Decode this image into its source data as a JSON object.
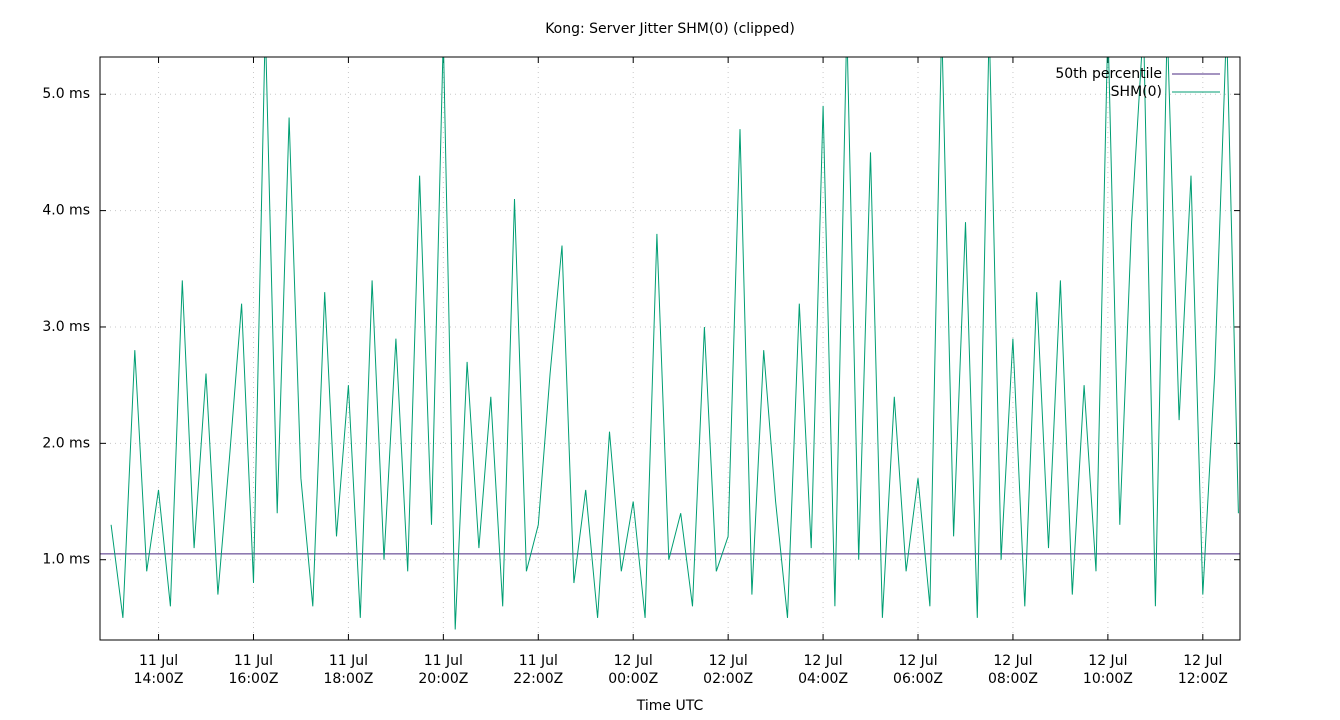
{
  "chart_data": {
    "type": "line",
    "title": "Kong: Server Jitter SHM(0) (clipped)",
    "x_label": "Time UTC",
    "xlim": [
      "11 Jul 12:46Z",
      "12 Jul 12:47Z"
    ],
    "ylim": [
      0.31,
      5.32
    ],
    "yticks": [
      {
        "value": 1,
        "label": "1.0 ms"
      },
      {
        "value": 2,
        "label": "2.0 ms"
      },
      {
        "value": 3,
        "label": "3.0 ms"
      },
      {
        "value": 4,
        "label": "4.0 ms"
      },
      {
        "value": 5,
        "label": "5.0 ms"
      }
    ],
    "xticks": [
      {
        "value": "11 Jul 14:00Z",
        "label": [
          "11 Jul",
          "14:00Z"
        ]
      },
      {
        "value": "11 Jul 16:00Z",
        "label": [
          "11 Jul",
          "16:00Z"
        ]
      },
      {
        "value": "11 Jul 18:00Z",
        "label": [
          "11 Jul",
          "18:00Z"
        ]
      },
      {
        "value": "11 Jul 20:00Z",
        "label": [
          "11 Jul",
          "20:00Z"
        ]
      },
      {
        "value": "11 Jul 22:00Z",
        "label": [
          "11 Jul",
          "22:00Z"
        ]
      },
      {
        "value": "12 Jul 00:00Z",
        "label": [
          "12 Jul",
          "00:00Z"
        ]
      },
      {
        "value": "12 Jul 02:00Z",
        "label": [
          "12 Jul",
          "02:00Z"
        ]
      },
      {
        "value": "12 Jul 04:00Z",
        "label": [
          "12 Jul",
          "04:00Z"
        ]
      },
      {
        "value": "12 Jul 06:00Z",
        "label": [
          "12 Jul",
          "06:00Z"
        ]
      },
      {
        "value": "12 Jul 08:00Z",
        "label": [
          "12 Jul",
          "08:00Z"
        ]
      },
      {
        "value": "12 Jul 10:00Z",
        "label": [
          "12 Jul",
          "10:00Z"
        ]
      },
      {
        "value": "12 Jul 12:00Z",
        "label": [
          "12 Jul",
          "12:00Z"
        ]
      }
    ],
    "grid": true,
    "legend": "top-right",
    "series": [
      {
        "name": "50th percentile",
        "color": "#4a2a82",
        "x": [
          "11 Jul 12:46Z",
          "12 Jul 12:47Z"
        ],
        "values": [
          1.05,
          1.05
        ]
      },
      {
        "name": "SHM(0)",
        "color": "#009e73",
        "x": [
          "11 Jul 13:00Z",
          "11 Jul 13:15Z",
          "11 Jul 13:30Z",
          "11 Jul 13:45Z",
          "11 Jul 14:00Z",
          "11 Jul 14:15Z",
          "11 Jul 14:30Z",
          "11 Jul 14:45Z",
          "11 Jul 15:00Z",
          "11 Jul 15:15Z",
          "11 Jul 15:30Z",
          "11 Jul 15:45Z",
          "11 Jul 16:00Z",
          "11 Jul 16:15Z",
          "11 Jul 16:30Z",
          "11 Jul 16:45Z",
          "11 Jul 17:00Z",
          "11 Jul 17:15Z",
          "11 Jul 17:30Z",
          "11 Jul 17:45Z",
          "11 Jul 18:00Z",
          "11 Jul 18:15Z",
          "11 Jul 18:30Z",
          "11 Jul 18:45Z",
          "11 Jul 19:00Z",
          "11 Jul 19:15Z",
          "11 Jul 19:30Z",
          "11 Jul 19:45Z",
          "11 Jul 20:00Z",
          "11 Jul 20:15Z",
          "11 Jul 20:30Z",
          "11 Jul 20:45Z",
          "11 Jul 21:00Z",
          "11 Jul 21:15Z",
          "11 Jul 21:30Z",
          "11 Jul 21:45Z",
          "11 Jul 22:00Z",
          "11 Jul 22:15Z",
          "11 Jul 22:30Z",
          "11 Jul 22:45Z",
          "11 Jul 23:00Z",
          "11 Jul 23:15Z",
          "11 Jul 23:30Z",
          "11 Jul 23:45Z",
          "12 Jul 00:00Z",
          "12 Jul 00:15Z",
          "12 Jul 00:30Z",
          "12 Jul 00:45Z",
          "12 Jul 01:00Z",
          "12 Jul 01:15Z",
          "12 Jul 01:30Z",
          "12 Jul 01:45Z",
          "12 Jul 02:00Z",
          "12 Jul 02:15Z",
          "12 Jul 02:30Z",
          "12 Jul 02:45Z",
          "12 Jul 03:00Z",
          "12 Jul 03:15Z",
          "12 Jul 03:30Z",
          "12 Jul 03:45Z",
          "12 Jul 04:00Z",
          "12 Jul 04:15Z",
          "12 Jul 04:30Z",
          "12 Jul 04:45Z",
          "12 Jul 05:00Z",
          "12 Jul 05:15Z",
          "12 Jul 05:30Z",
          "12 Jul 05:45Z",
          "12 Jul 06:00Z",
          "12 Jul 06:15Z",
          "12 Jul 06:30Z",
          "12 Jul 06:45Z",
          "12 Jul 07:00Z",
          "12 Jul 07:15Z",
          "12 Jul 07:30Z",
          "12 Jul 07:45Z",
          "12 Jul 08:00Z",
          "12 Jul 08:15Z",
          "12 Jul 08:30Z",
          "12 Jul 08:45Z",
          "12 Jul 09:00Z",
          "12 Jul 09:15Z",
          "12 Jul 09:30Z",
          "12 Jul 09:45Z",
          "12 Jul 10:00Z",
          "12 Jul 10:15Z",
          "12 Jul 10:30Z",
          "12 Jul 10:45Z",
          "12 Jul 11:00Z",
          "12 Jul 11:15Z",
          "12 Jul 11:30Z",
          "12 Jul 11:45Z",
          "12 Jul 12:00Z",
          "12 Jul 12:15Z",
          "12 Jul 12:30Z",
          "12 Jul 12:45Z"
        ],
        "values": [
          1.3,
          0.5,
          2.8,
          0.9,
          1.6,
          0.6,
          3.4,
          1.1,
          2.6,
          0.7,
          1.9,
          3.2,
          0.8,
          5.6,
          1.4,
          4.8,
          1.7,
          0.6,
          3.3,
          1.2,
          2.5,
          0.5,
          3.4,
          1.0,
          2.9,
          0.9,
          4.3,
          1.3,
          5.5,
          0.4,
          2.7,
          1.1,
          2.4,
          0.6,
          4.1,
          0.9,
          1.3,
          2.6,
          3.7,
          0.8,
          1.6,
          0.5,
          2.1,
          0.9,
          1.5,
          0.5,
          3.8,
          1.0,
          1.4,
          0.6,
          3.0,
          0.9,
          1.2,
          4.7,
          0.7,
          2.8,
          1.5,
          0.5,
          3.2,
          1.1,
          4.9,
          0.6,
          5.6,
          1.0,
          4.5,
          0.5,
          2.4,
          0.9,
          1.7,
          0.6,
          5.6,
          1.2,
          3.9,
          0.5,
          5.6,
          1.0,
          2.9,
          0.6,
          3.3,
          1.1,
          3.4,
          0.7,
          2.5,
          0.9,
          5.6,
          1.3,
          3.9,
          5.6,
          0.6,
          5.6,
          2.2,
          4.3,
          0.7,
          2.6,
          5.6,
          1.4
        ]
      }
    ]
  }
}
